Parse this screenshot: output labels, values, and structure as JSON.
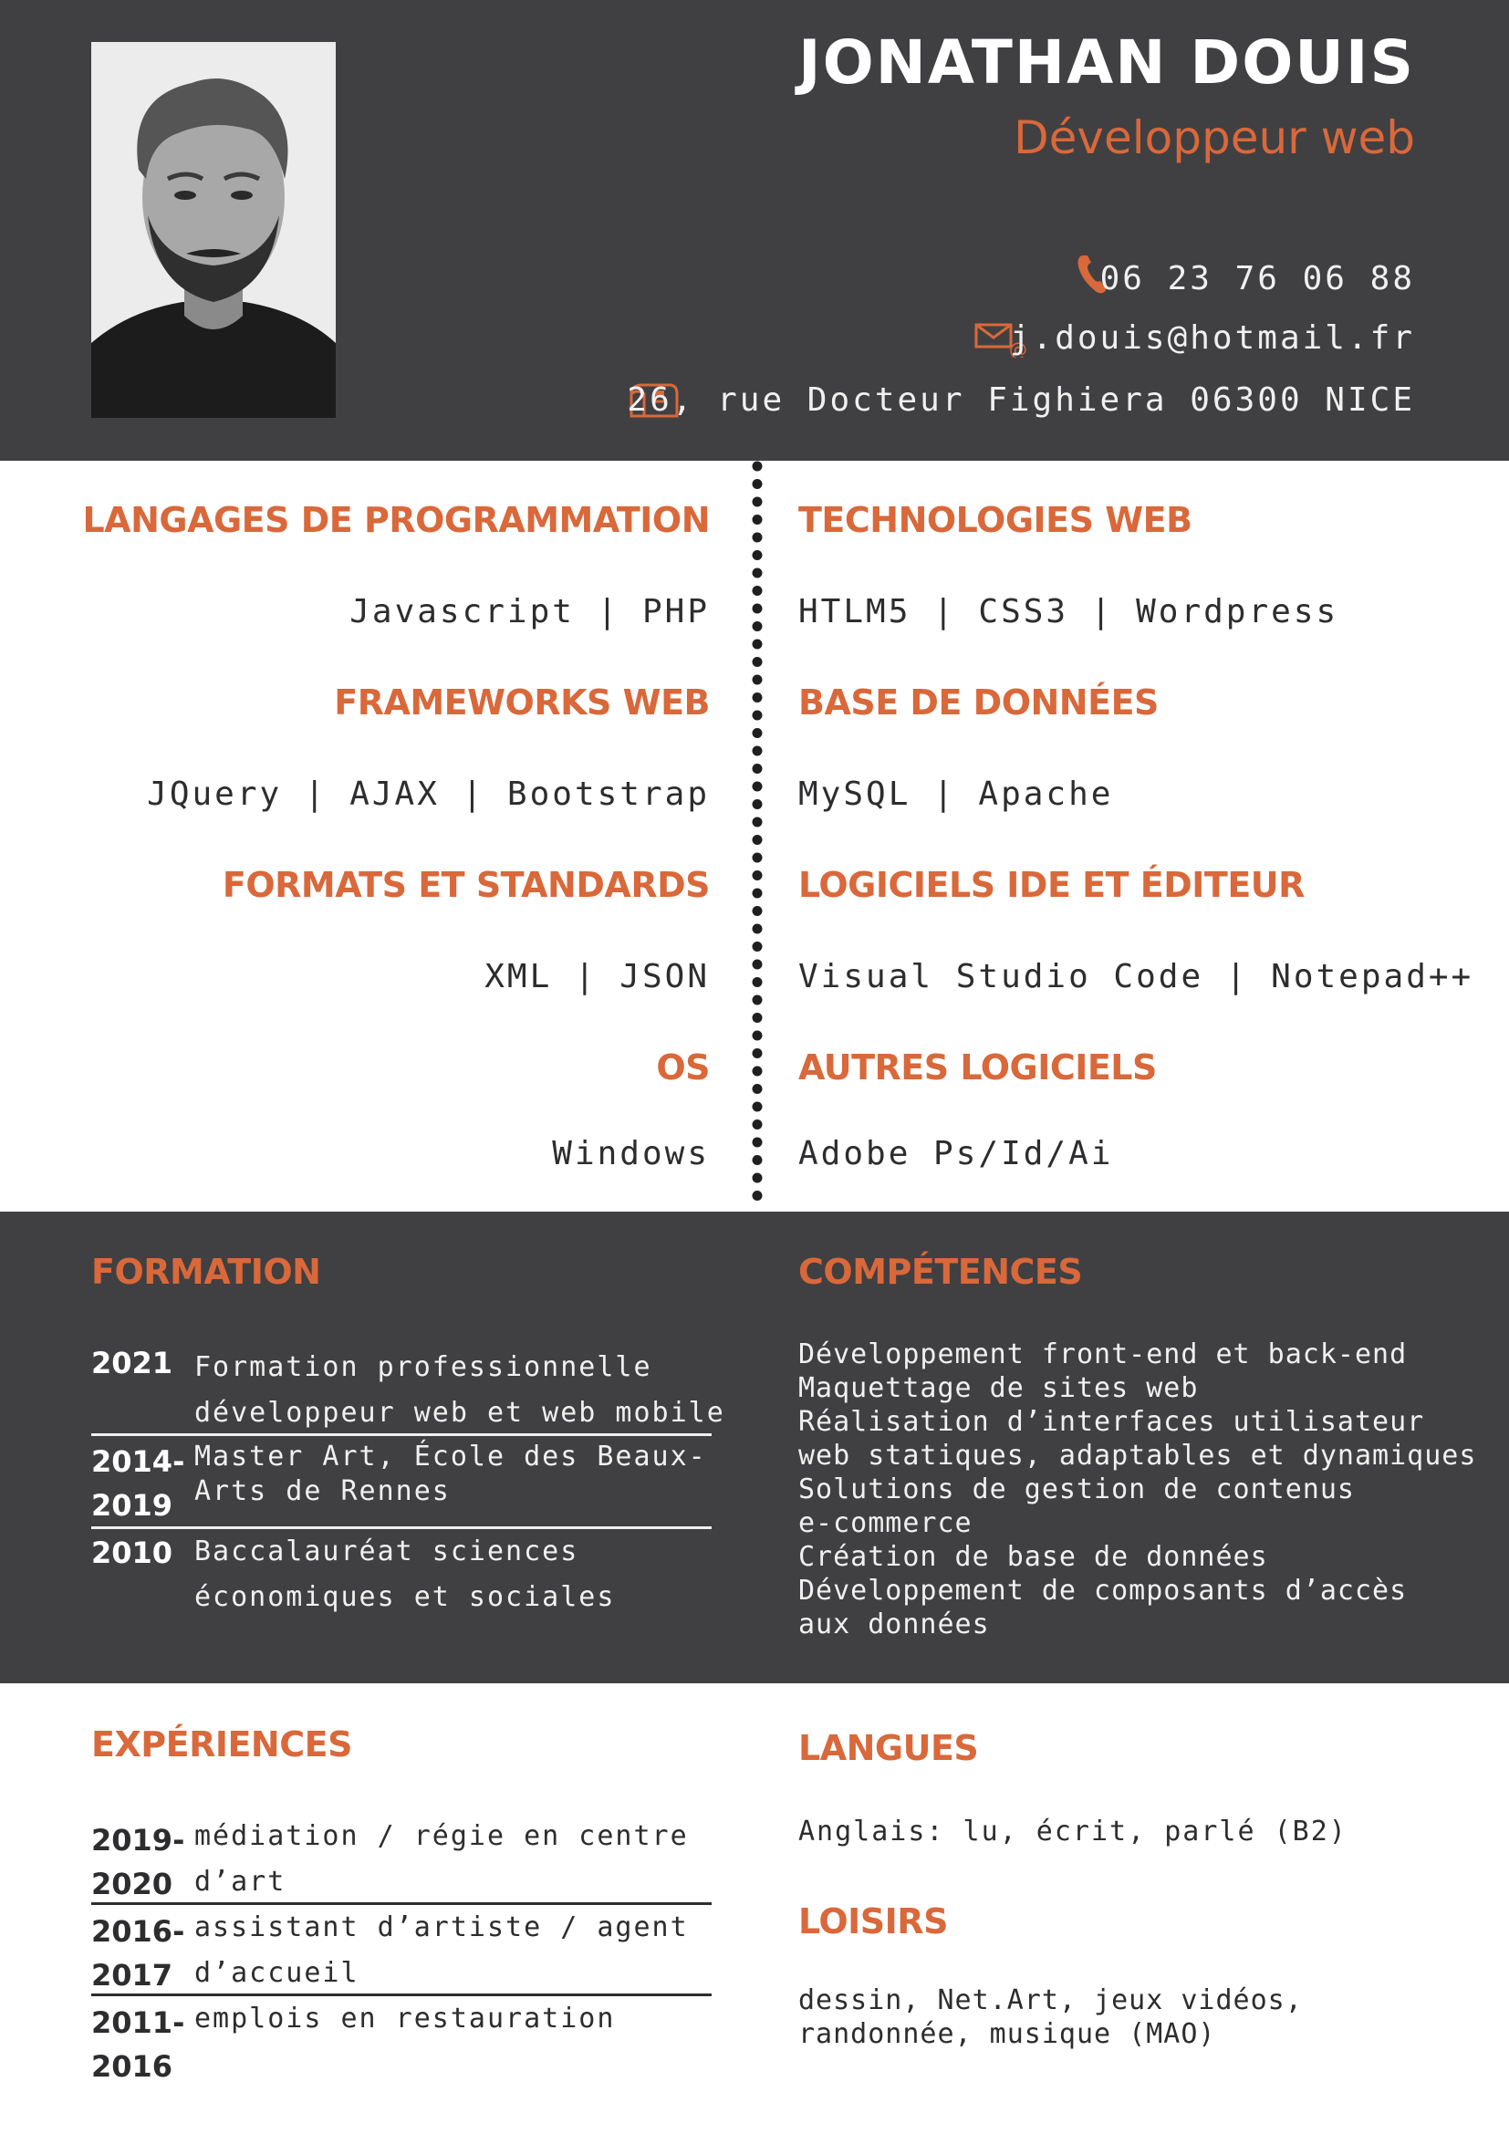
{
  "header": {
    "name": "JONATHAN DOUIS",
    "title": "Développeur web",
    "phone": "06 23 76 06 88",
    "email": "j.douis@hotmail.fr",
    "address": "26, rue Docteur Fighiera 06300 NICE"
  },
  "skills": {
    "left": [
      {
        "heading": "LANGAGES DE PROGRAMMATION",
        "value": "Javascript | PHP"
      },
      {
        "heading": "FRAMEWORKS WEB",
        "value": "JQuery | AJAX | Bootstrap"
      },
      {
        "heading": "FORMATS ET STANDARDS",
        "value": "XML | JSON"
      },
      {
        "heading": "OS",
        "value": "Windows"
      }
    ],
    "right": [
      {
        "heading": "TECHNOLOGIES WEB",
        "value": "HTLM5 | CSS3 | Wordpress"
      },
      {
        "heading": "BASE DE DONNÉES",
        "value": "MySQL | Apache"
      },
      {
        "heading": "LOGICIELS IDE ET ÉDITEUR",
        "value": "Visual Studio Code | Notepad++"
      },
      {
        "heading": "AUTRES LOGICIELS",
        "value": "Adobe Ps/Id/Ai"
      }
    ]
  },
  "formation": {
    "heading": "FORMATION",
    "items": [
      {
        "year1": "2021",
        "year2": "",
        "line1": "Formation professionnelle",
        "line2": "développeur web et web mobile"
      },
      {
        "year1": "2014-",
        "year2": "2019",
        "line1": "Master Art, École des Beaux-",
        "line2": "Arts de Rennes"
      },
      {
        "year1": "2010",
        "year2": "",
        "line1": "Baccalauréat sciences",
        "line2": "économiques et sociales"
      }
    ]
  },
  "competences": {
    "heading": "COMPÉTENCES",
    "lines": [
      "Développement front-end et back-end",
      "Maquettage de sites web",
      "Réalisation d’interfaces utilisateur",
      "web statiques, adaptables et dynamiques",
      "Solutions de gestion de contenus",
      "e-commerce",
      "Création de base de données",
      "Développement de composants d’accès",
      "aux données"
    ]
  },
  "experiences": {
    "heading": "EXPÉRIENCES",
    "items": [
      {
        "year1": "2019-",
        "year2": "2020",
        "line1": "médiation / régie en centre",
        "line2": "d’art"
      },
      {
        "year1": "2016-",
        "year2": "2017",
        "line1": "assistant d’artiste / agent",
        "line2": "d’accueil"
      },
      {
        "year1": "2011-",
        "year2": "2016",
        "line1": "emplois en restauration",
        "line2": ""
      }
    ]
  },
  "langues": {
    "heading": "LANGUES",
    "text": "Anglais: lu, écrit, parlé (B2)"
  },
  "loisirs": {
    "heading": "LOISIRS",
    "line1": "dessin, Net.Art, jeux vidéos,",
    "line2": "randonnée, musique (MAO)"
  },
  "colors": {
    "accent": "#d9683a",
    "dark": "#404042",
    "text": "#2d2d2f"
  },
  "icons": [
    "phone-icon",
    "mail-icon",
    "mailbox-icon"
  ]
}
